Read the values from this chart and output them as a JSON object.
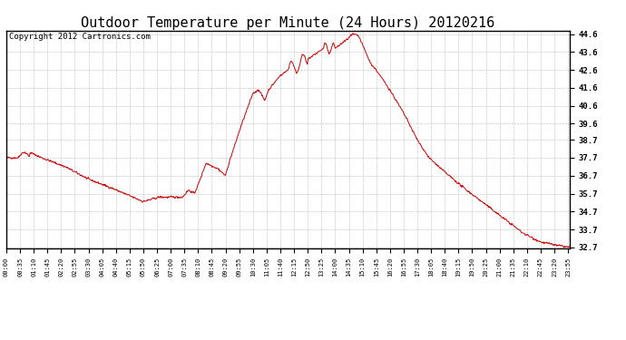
{
  "title": "Outdoor Temperature per Minute (24 Hours) 20120216",
  "copyright_text": "Copyright 2012 Cartronics.com",
  "line_color": "#cc0000",
  "background_color": "#ffffff",
  "plot_bg_color": "#ffffff",
  "grid_color": "#bbbbbb",
  "yticks": [
    32.7,
    33.7,
    34.7,
    35.7,
    36.7,
    37.7,
    38.7,
    39.6,
    40.6,
    41.6,
    42.6,
    43.6,
    44.6
  ],
  "ymin": 32.7,
  "ymax": 44.6,
  "title_fontsize": 11,
  "copyright_fontsize": 6.5
}
